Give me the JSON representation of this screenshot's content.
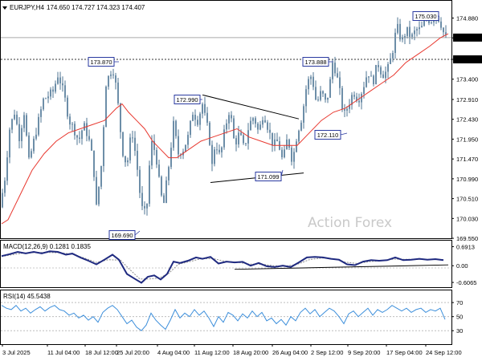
{
  "header": {
    "symbol": "EURJPY,H4",
    "ohlc": "174.650 174.727 174.323 174.407"
  },
  "watermark": "Action Forex",
  "chart_data": [
    {
      "type": "candlestick",
      "name_shown": "EURJPY,H4",
      "ylim": [
        169.59,
        175.2
      ],
      "y_ticks": [
        "174.880",
        "174.400",
        "173.880",
        "173.400",
        "172.910",
        "172.430",
        "171.950",
        "171.470",
        "170.990",
        "170.510",
        "170.030",
        "169.550"
      ],
      "x_ticks": [
        "3 Jul 2025",
        "11 Jul 04:00",
        "18 Jul 12:00",
        "25 Jul 20:00",
        "4 Aug 04:00",
        "11 Aug 12:00",
        "18 Aug 20:00",
        "26 Aug 04:00",
        "2 Sep 12:00",
        "9 Sep 20:00",
        "17 Sep 04:00",
        "24 Sep 12:00"
      ],
      "close_path": [
        [
          0,
          170.3
        ],
        [
          6,
          171.0
        ],
        [
          12,
          172.2
        ],
        [
          18,
          172.6
        ],
        [
          24,
          172.0
        ],
        [
          30,
          172.6
        ],
        [
          36,
          171.4
        ],
        [
          42,
          171.9
        ],
        [
          48,
          172.4
        ],
        [
          54,
          172.9
        ],
        [
          60,
          173.0
        ],
        [
          66,
          173.1
        ],
        [
          72,
          173.5
        ],
        [
          76,
          173.3
        ],
        [
          80,
          173.0
        ],
        [
          86,
          172.4
        ],
        [
          92,
          172.2
        ],
        [
          98,
          171.9
        ],
        [
          104,
          172.3
        ],
        [
          110,
          172.0
        ],
        [
          116,
          171.4
        ],
        [
          120,
          170.3
        ],
        [
          126,
          171.3
        ],
        [
          132,
          173.3
        ],
        [
          138,
          173.6
        ],
        [
          142,
          173.6
        ],
        [
          148,
          172.6
        ],
        [
          152,
          171.7
        ],
        [
          158,
          171.3
        ],
        [
          164,
          172.2
        ],
        [
          170,
          171.4
        ],
        [
          176,
          170.3
        ],
        [
          182,
          170.1
        ],
        [
          188,
          171.9
        ],
        [
          194,
          171.6
        ],
        [
          200,
          170.6
        ],
        [
          204,
          170.4
        ],
        [
          210,
          171.3
        ],
        [
          216,
          172.3
        ],
        [
          222,
          171.6
        ],
        [
          228,
          171.7
        ],
        [
          234,
          172.0
        ],
        [
          240,
          172.6
        ],
        [
          246,
          172.4
        ],
        [
          252,
          172.8
        ],
        [
          256,
          172.4
        ],
        [
          260,
          172.1
        ],
        [
          264,
          171.3
        ],
        [
          268,
          171.9
        ],
        [
          274,
          171.5
        ],
        [
          280,
          172.2
        ],
        [
          286,
          172.7
        ],
        [
          292,
          171.8
        ],
        [
          298,
          172.1
        ],
        [
          304,
          171.7
        ],
        [
          310,
          172.3
        ],
        [
          316,
          172.5
        ],
        [
          322,
          172.1
        ],
        [
          328,
          172.6
        ],
        [
          334,
          172.2
        ],
        [
          340,
          171.8
        ],
        [
          346,
          171.9
        ],
        [
          352,
          171.4
        ],
        [
          358,
          172.0
        ],
        [
          364,
          171.4
        ],
        [
          370,
          172.1
        ],
        [
          376,
          172.5
        ],
        [
          382,
          173.3
        ],
        [
          388,
          173.5
        ],
        [
          394,
          172.8
        ],
        [
          400,
          173.1
        ],
        [
          406,
          172.8
        ],
        [
          410,
          173.2
        ],
        [
          414,
          173.8
        ],
        [
          418,
          173.6
        ],
        [
          422,
          173.2
        ],
        [
          428,
          172.5
        ],
        [
          434,
          172.8
        ],
        [
          440,
          173.1
        ],
        [
          446,
          172.9
        ],
        [
          452,
          173.2
        ],
        [
          458,
          173.6
        ],
        [
          464,
          173.3
        ],
        [
          470,
          173.8
        ],
        [
          476,
          173.5
        ],
        [
          482,
          173.6
        ],
        [
          488,
          174.0
        ],
        [
          494,
          174.7
        ],
        [
          500,
          174.3
        ],
        [
          506,
          174.6
        ],
        [
          512,
          174.4
        ],
        [
          518,
          174.6
        ],
        [
          524,
          174.6
        ],
        [
          530,
          174.9
        ],
        [
          536,
          174.8
        ],
        [
          542,
          175.0
        ],
        [
          548,
          174.8
        ],
        [
          554,
          174.4
        ]
      ],
      "moving_average": [
        [
          2,
          169.9
        ],
        [
          10,
          170.0
        ],
        [
          25,
          170.6
        ],
        [
          40,
          171.2
        ],
        [
          55,
          171.6
        ],
        [
          70,
          171.9
        ],
        [
          85,
          172.1
        ],
        [
          100,
          172.2
        ],
        [
          115,
          172.3
        ],
        [
          130,
          172.4
        ],
        [
          145,
          172.7
        ],
        [
          152,
          172.8
        ],
        [
          160,
          172.6
        ],
        [
          170,
          172.4
        ],
        [
          180,
          172.2
        ],
        [
          190,
          171.9
        ],
        [
          200,
          171.7
        ],
        [
          210,
          171.5
        ],
        [
          220,
          171.5
        ],
        [
          235,
          171.7
        ],
        [
          250,
          171.9
        ],
        [
          265,
          172.0
        ],
        [
          280,
          172.1
        ],
        [
          295,
          172.2
        ],
        [
          310,
          172.0
        ],
        [
          325,
          171.9
        ],
        [
          340,
          171.8
        ],
        [
          355,
          171.8
        ],
        [
          370,
          171.8
        ],
        [
          385,
          172.1
        ],
        [
          400,
          172.4
        ],
        [
          415,
          172.6
        ],
        [
          430,
          172.7
        ],
        [
          445,
          172.9
        ],
        [
          460,
          173.1
        ],
        [
          475,
          173.3
        ],
        [
          490,
          173.5
        ],
        [
          505,
          173.8
        ],
        [
          520,
          174.0
        ],
        [
          535,
          174.2
        ],
        [
          548,
          174.4
        ],
        [
          558,
          174.5
        ]
      ],
      "annotations": [
        {
          "text": "175.030",
          "value": 175.03
        },
        {
          "text": "173.870",
          "value": 173.87
        },
        {
          "text": "173.888",
          "value": 173.888
        },
        {
          "text": "172.990",
          "value": 172.99
        },
        {
          "text": "172.110",
          "value": 172.11
        },
        {
          "text": "171.099",
          "value": 171.099
        },
        {
          "text": "169.690",
          "value": 169.69
        }
      ],
      "levels": [
        {
          "text": "174.407",
          "value": 174.407,
          "style": "solid-gray"
        },
        {
          "text": "173.880",
          "value": 173.88,
          "style": "dotted"
        }
      ],
      "trendlines": [
        [
          [
            252,
            173.02
          ],
          [
            372,
            172.44
          ]
        ],
        [
          [
            262,
            170.9
          ],
          [
            378,
            171.13
          ]
        ]
      ]
    },
    {
      "type": "line",
      "label": "MACD(12,26,9) 0.1281 0.1835",
      "ylim": [
        -0.75,
        0.85
      ],
      "y_ticks": [
        "0.6913",
        "0.00",
        "-0.6065"
      ],
      "macd": [
        [
          2,
          0.35
        ],
        [
          12,
          0.42
        ],
        [
          22,
          0.5
        ],
        [
          32,
          0.45
        ],
        [
          42,
          0.5
        ],
        [
          52,
          0.45
        ],
        [
          62,
          0.52
        ],
        [
          72,
          0.5
        ],
        [
          82,
          0.4
        ],
        [
          90,
          0.44
        ],
        [
          100,
          0.3
        ],
        [
          110,
          0.18
        ],
        [
          120,
          0.05
        ],
        [
          130,
          0.22
        ],
        [
          140,
          0.4
        ],
        [
          148,
          0.22
        ],
        [
          158,
          -0.3
        ],
        [
          168,
          -0.48
        ],
        [
          176,
          -0.62
        ],
        [
          184,
          -0.4
        ],
        [
          192,
          -0.35
        ],
        [
          200,
          -0.5
        ],
        [
          208,
          -0.3
        ],
        [
          216,
          0.15
        ],
        [
          224,
          0.1
        ],
        [
          234,
          0.18
        ],
        [
          244,
          0.3
        ],
        [
          252,
          0.25
        ],
        [
          262,
          0.32
        ],
        [
          272,
          0.08
        ],
        [
          282,
          0.15
        ],
        [
          292,
          0.12
        ],
        [
          302,
          0.14
        ],
        [
          312,
          0.0
        ],
        [
          322,
          0.1
        ],
        [
          332,
          -0.02
        ],
        [
          342,
          -0.05
        ],
        [
          352,
          0.0
        ],
        [
          362,
          -0.05
        ],
        [
          372,
          0.12
        ],
        [
          382,
          0.3
        ],
        [
          392,
          0.32
        ],
        [
          402,
          0.3
        ],
        [
          412,
          0.25
        ],
        [
          422,
          0.22
        ],
        [
          432,
          0.05
        ],
        [
          442,
          0.02
        ],
        [
          452,
          0.15
        ],
        [
          462,
          0.2
        ],
        [
          472,
          0.18
        ],
        [
          482,
          0.2
        ],
        [
          492,
          0.3
        ],
        [
          502,
          0.2
        ],
        [
          512,
          0.22
        ],
        [
          522,
          0.25
        ],
        [
          532,
          0.22
        ],
        [
          542,
          0.24
        ],
        [
          552,
          0.2
        ]
      ],
      "signal": [
        [
          2,
          0.33
        ],
        [
          15,
          0.4
        ],
        [
          30,
          0.46
        ],
        [
          45,
          0.48
        ],
        [
          60,
          0.48
        ],
        [
          75,
          0.47
        ],
        [
          90,
          0.42
        ],
        [
          105,
          0.28
        ],
        [
          120,
          0.12
        ],
        [
          135,
          0.22
        ],
        [
          150,
          0.2
        ],
        [
          162,
          -0.15
        ],
        [
          174,
          -0.48
        ],
        [
          186,
          -0.48
        ],
        [
          198,
          -0.45
        ],
        [
          210,
          -0.28
        ],
        [
          222,
          0.05
        ],
        [
          236,
          0.15
        ],
        [
          250,
          0.25
        ],
        [
          265,
          0.26
        ],
        [
          280,
          0.16
        ],
        [
          295,
          0.13
        ],
        [
          310,
          0.06
        ],
        [
          325,
          0.06
        ],
        [
          340,
          0.0
        ],
        [
          355,
          -0.02
        ],
        [
          370,
          0.05
        ],
        [
          385,
          0.22
        ],
        [
          400,
          0.28
        ],
        [
          415,
          0.25
        ],
        [
          430,
          0.13
        ],
        [
          445,
          0.08
        ],
        [
          460,
          0.15
        ],
        [
          475,
          0.18
        ],
        [
          490,
          0.24
        ],
        [
          505,
          0.23
        ],
        [
          520,
          0.23
        ],
        [
          535,
          0.23
        ],
        [
          552,
          0.22
        ]
      ],
      "trendline": [
        [
          292,
          -0.13
        ],
        [
          558,
          0.03
        ]
      ]
    },
    {
      "type": "line",
      "label": "RSI(14) 45.5438",
      "ylim": [
        12,
        85
      ],
      "y_ticks": [
        "70",
        "50",
        "30"
      ],
      "rsi": [
        [
          2,
          66
        ],
        [
          8,
          62
        ],
        [
          14,
          60
        ],
        [
          20,
          66
        ],
        [
          26,
          58
        ],
        [
          32,
          62
        ],
        [
          38,
          55
        ],
        [
          44,
          60
        ],
        [
          50,
          64
        ],
        [
          56,
          58
        ],
        [
          62,
          63
        ],
        [
          68,
          66
        ],
        [
          74,
          60
        ],
        [
          80,
          58
        ],
        [
          86,
          52
        ],
        [
          92,
          55
        ],
        [
          98,
          48
        ],
        [
          104,
          52
        ],
        [
          110,
          45
        ],
        [
          116,
          50
        ],
        [
          122,
          42
        ],
        [
          128,
          56
        ],
        [
          134,
          62
        ],
        [
          140,
          66
        ],
        [
          146,
          60
        ],
        [
          152,
          50
        ],
        [
          158,
          40
        ],
        [
          164,
          45
        ],
        [
          170,
          35
        ],
        [
          176,
          30
        ],
        [
          182,
          38
        ],
        [
          188,
          55
        ],
        [
          194,
          45
        ],
        [
          200,
          38
        ],
        [
          206,
          32
        ],
        [
          212,
          45
        ],
        [
          218,
          60
        ],
        [
          224,
          48
        ],
        [
          230,
          55
        ],
        [
          236,
          50
        ],
        [
          242,
          60
        ],
        [
          248,
          52
        ],
        [
          254,
          58
        ],
        [
          260,
          48
        ],
        [
          266,
          36
        ],
        [
          272,
          50
        ],
        [
          278,
          42
        ],
        [
          284,
          56
        ],
        [
          290,
          52
        ],
        [
          296,
          44
        ],
        [
          302,
          54
        ],
        [
          308,
          48
        ],
        [
          314,
          58
        ],
        [
          320,
          50
        ],
        [
          326,
          56
        ],
        [
          332,
          44
        ],
        [
          338,
          48
        ],
        [
          344,
          40
        ],
        [
          350,
          46
        ],
        [
          356,
          38
        ],
        [
          362,
          50
        ],
        [
          368,
          44
        ],
        [
          374,
          56
        ],
        [
          380,
          62
        ],
        [
          386,
          54
        ],
        [
          392,
          60
        ],
        [
          398,
          50
        ],
        [
          404,
          56
        ],
        [
          410,
          62
        ],
        [
          416,
          58
        ],
        [
          422,
          50
        ],
        [
          428,
          40
        ],
        [
          434,
          54
        ],
        [
          440,
          58
        ],
        [
          446,
          50
        ],
        [
          452,
          56
        ],
        [
          458,
          62
        ],
        [
          464,
          52
        ],
        [
          470,
          60
        ],
        [
          476,
          56
        ],
        [
          482,
          60
        ],
        [
          488,
          66
        ],
        [
          494,
          62
        ],
        [
          500,
          58
        ],
        [
          506,
          62
        ],
        [
          512,
          56
        ],
        [
          518,
          60
        ],
        [
          524,
          62
        ],
        [
          530,
          56
        ],
        [
          536,
          60
        ],
        [
          542,
          58
        ],
        [
          548,
          62
        ],
        [
          554,
          46
        ]
      ]
    }
  ]
}
